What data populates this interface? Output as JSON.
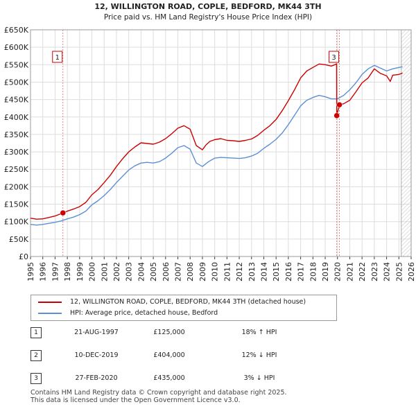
{
  "chart_data": {
    "type": "line",
    "title": "12, WILLINGTON ROAD, COPLE, BEDFORD, MK44 3TH",
    "subtitle": "Price paid vs. HM Land Registry's House Price Index (HPI)",
    "xlim": [
      1995,
      2026
    ],
    "ylim": [
      0,
      650000
    ],
    "x_ticks": [
      "1995",
      "1996",
      "1997",
      "1998",
      "1999",
      "2000",
      "2001",
      "2002",
      "2003",
      "2004",
      "2005",
      "2006",
      "2007",
      "2008",
      "2009",
      "2010",
      "2011",
      "2012",
      "2013",
      "2014",
      "2015",
      "2016",
      "2017",
      "2018",
      "2019",
      "2020",
      "2021",
      "2022",
      "2023",
      "2024",
      "2025",
      "2026"
    ],
    "y_ticks": [
      {
        "value": 0,
        "label": "£0"
      },
      {
        "value": 50000,
        "label": "£50K"
      },
      {
        "value": 100000,
        "label": "£100K"
      },
      {
        "value": 150000,
        "label": "£150K"
      },
      {
        "value": 200000,
        "label": "£200K"
      },
      {
        "value": 250000,
        "label": "£250K"
      },
      {
        "value": 300000,
        "label": "£300K"
      },
      {
        "value": 350000,
        "label": "£350K"
      },
      {
        "value": 400000,
        "label": "£400K"
      },
      {
        "value": 450000,
        "label": "£450K"
      },
      {
        "value": 500000,
        "label": "£500K"
      },
      {
        "value": 550000,
        "label": "£550K"
      },
      {
        "value": 600000,
        "label": "£600K"
      },
      {
        "value": 650000,
        "label": "£650K"
      }
    ],
    "grid": true,
    "hatched_region_start": 2025.2,
    "series": [
      {
        "name": "12, WILLINGTON ROAD, COPLE, BEDFORD, MK44 3TH (detached house)",
        "color": "#cc0000",
        "x": [
          1995.0,
          1995.5,
          1996.0,
          1996.5,
          1997.0,
          1997.64,
          1998.0,
          1998.5,
          1999.0,
          1999.5,
          2000.0,
          2000.5,
          2001.0,
          2001.5,
          2002.0,
          2002.5,
          2003.0,
          2003.5,
          2004.0,
          2004.5,
          2005.0,
          2005.5,
          2006.0,
          2006.5,
          2007.0,
          2007.5,
          2008.0,
          2008.5,
          2009.0,
          2009.3,
          2009.6,
          2010.0,
          2010.5,
          2011.0,
          2011.5,
          2012.0,
          2012.5,
          2013.0,
          2013.5,
          2014.0,
          2014.5,
          2015.0,
          2015.5,
          2016.0,
          2016.5,
          2017.0,
          2017.5,
          2018.0,
          2018.5,
          2019.0,
          2019.5,
          2019.93,
          2019.94,
          2020.0,
          2020.16,
          2020.5,
          2021.0,
          2021.5,
          2022.0,
          2022.5,
          2023.0,
          2023.5,
          2024.0,
          2024.3,
          2024.5,
          2025.0,
          2025.3
        ],
        "y": [
          110000,
          107000,
          108000,
          112000,
          116000,
          125000,
          130000,
          136000,
          143000,
          155000,
          177000,
          192000,
          212000,
          233000,
          258000,
          280000,
          300000,
          314000,
          326000,
          324000,
          322000,
          328000,
          338000,
          352000,
          368000,
          375000,
          365000,
          318000,
          306000,
          320000,
          330000,
          335000,
          338000,
          333000,
          332000,
          330000,
          333000,
          337000,
          347000,
          362000,
          375000,
          393000,
          418000,
          447000,
          478000,
          512000,
          532000,
          542000,
          552000,
          550000,
          546000,
          552000,
          404000,
          412000,
          435000,
          438000,
          448000,
          472000,
          498000,
          512000,
          538000,
          525000,
          518000,
          502000,
          520000,
          522000,
          526000
        ]
      },
      {
        "name": "HPI: Average price, detached house, Bedford",
        "color": "#5b8fd4",
        "x": [
          1995.0,
          1995.5,
          1996.0,
          1996.5,
          1997.0,
          1997.5,
          1998.0,
          1998.5,
          1999.0,
          1999.5,
          2000.0,
          2000.5,
          2001.0,
          2001.5,
          2002.0,
          2002.5,
          2003.0,
          2003.5,
          2004.0,
          2004.5,
          2005.0,
          2005.5,
          2006.0,
          2006.5,
          2007.0,
          2007.5,
          2008.0,
          2008.5,
          2009.0,
          2009.5,
          2010.0,
          2010.5,
          2011.0,
          2011.5,
          2012.0,
          2012.5,
          2013.0,
          2013.5,
          2014.0,
          2014.5,
          2015.0,
          2015.5,
          2016.0,
          2016.5,
          2017.0,
          2017.5,
          2018.0,
          2018.5,
          2019.0,
          2019.5,
          2020.0,
          2020.5,
          2021.0,
          2021.5,
          2022.0,
          2022.5,
          2023.0,
          2023.5,
          2024.0,
          2024.5,
          2025.0,
          2025.3
        ],
        "y": [
          92000,
          90000,
          92000,
          95000,
          98000,
          102000,
          108000,
          113000,
          120000,
          130000,
          148000,
          160000,
          175000,
          192000,
          212000,
          230000,
          248000,
          260000,
          268000,
          270000,
          268000,
          272000,
          282000,
          296000,
          312000,
          318000,
          308000,
          268000,
          258000,
          272000,
          282000,
          284000,
          283000,
          282000,
          281000,
          283000,
          288000,
          296000,
          310000,
          322000,
          336000,
          354000,
          378000,
          405000,
          432000,
          448000,
          456000,
          462000,
          458000,
          452000,
          452000,
          462000,
          478000,
          498000,
          522000,
          538000,
          548000,
          540000,
          532000,
          538000,
          542000,
          544000
        ]
      }
    ],
    "sales": [
      {
        "num": "1",
        "date": "21-AUG-1997",
        "price": "£125,000",
        "hpi": "18% ↑ HPI",
        "x": 1997.64,
        "y": 125000
      },
      {
        "num": "2",
        "date": "10-DEC-2019",
        "price": "£404,000",
        "hpi": "12% ↓ HPI",
        "x": 2019.94,
        "y": 404000
      },
      {
        "num": "3",
        "date": "27-FEB-2020",
        "price": "£435,000",
        "hpi": "3% ↓ HPI",
        "x": 2020.16,
        "y": 435000
      }
    ],
    "chart_labels": [
      "1",
      "3"
    ]
  },
  "legend": {
    "series1": "12, WILLINGTON ROAD, COPLE, BEDFORD, MK44 3TH (detached house)",
    "series2": "HPI: Average price, detached house, Bedford"
  },
  "footer": {
    "line1": "Contains HM Land Registry data © Crown copyright and database right 2025.",
    "line2": "This data is licensed under the Open Government Licence v3.0."
  }
}
